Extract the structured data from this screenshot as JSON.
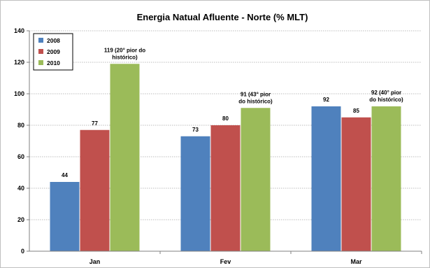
{
  "chart_data": {
    "type": "bar",
    "title": "Energia Natual Afluente - Norte (% MLT)",
    "categories": [
      "Jan",
      "Fev",
      "Mar"
    ],
    "series": [
      {
        "name": "2008",
        "color": "#4f81bd",
        "values": [
          44,
          73,
          92
        ],
        "labels": [
          [
            "44"
          ],
          [
            "73"
          ],
          [
            "92"
          ]
        ]
      },
      {
        "name": "2009",
        "color": "#c0504d",
        "values": [
          77,
          80,
          85
        ],
        "labels": [
          [
            "77"
          ],
          [
            "80"
          ],
          [
            "85"
          ]
        ]
      },
      {
        "name": "2010",
        "color": "#9bbb59",
        "values": [
          119,
          91,
          92
        ],
        "labels": [
          [
            "119  (20° pior do",
            "histórico)"
          ],
          [
            "91 (43° pior",
            "do histórico)"
          ],
          [
            "92 (40° pior",
            "do histórico)"
          ]
        ]
      }
    ],
    "yticks": [
      "0",
      "20",
      "40",
      "60",
      "80",
      "100",
      "120",
      "140"
    ],
    "ylim": [
      0,
      140
    ],
    "grid": true,
    "legend": "top-left"
  }
}
